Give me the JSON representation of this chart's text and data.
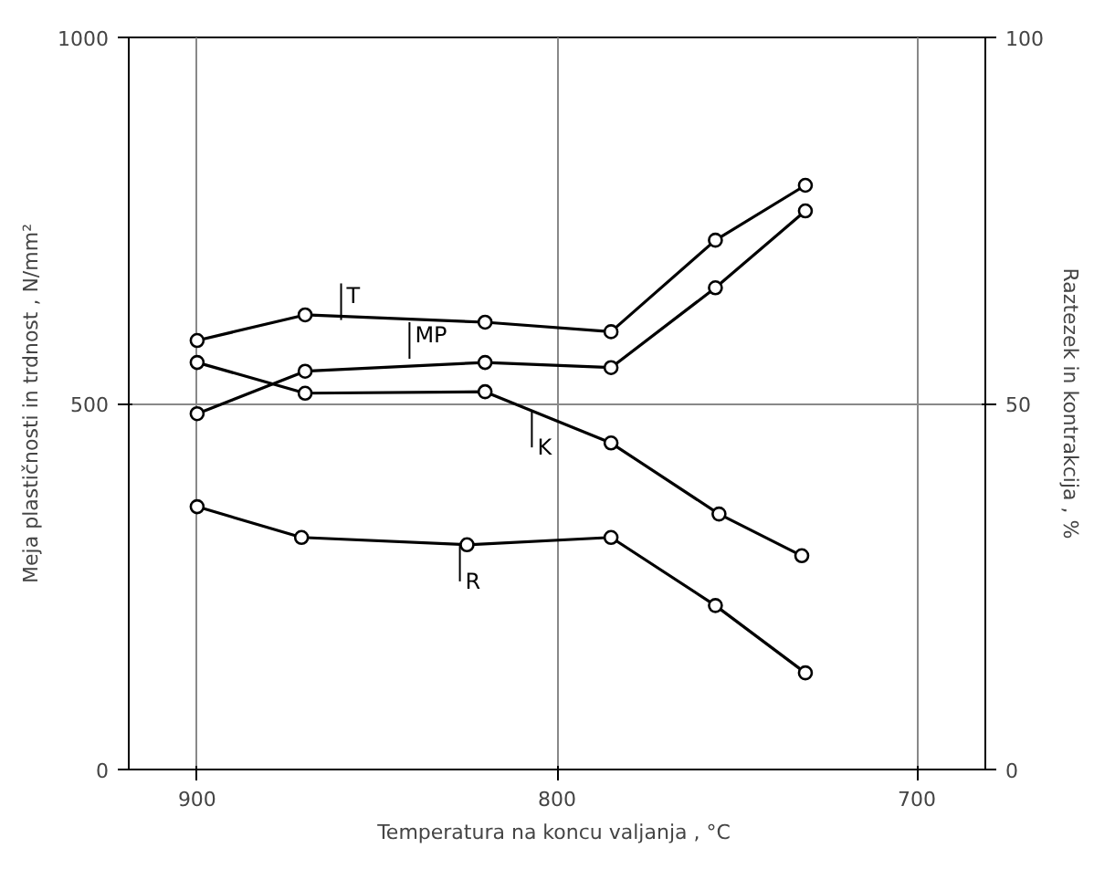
{
  "chart_data": {
    "type": "line",
    "xlabel": "Temperatura  na koncu valjanja , °C",
    "ylabel": "Meja plastičnosti in trdnost , N/mm²",
    "y2label": "Raztezek in kontrakcija , %",
    "xlim": [
      919,
      681
    ],
    "xticks": [
      900,
      800,
      700
    ],
    "ylim": [
      0,
      1000
    ],
    "yticks": [
      0,
      500,
      1000
    ],
    "y2lim": [
      0,
      100
    ],
    "y2ticks": [
      0,
      50,
      100
    ],
    "grid": true,
    "marker": "circle",
    "line_style": "solid",
    "series": [
      {
        "color": "#000000",
        "x": [
          900,
          870,
          820,
          785,
          756,
          731
        ],
        "values": [
          586,
          621,
          611,
          598,
          723,
          798
        ]
      },
      {
        "color": "#000000",
        "x": [
          900,
          870,
          820,
          785,
          756,
          731
        ],
        "values": [
          486,
          544,
          556,
          549,
          658,
          763
        ]
      },
      {
        "color": "#000000",
        "axis": "y2",
        "x": [
          900,
          870,
          820,
          785,
          755,
          732
        ],
        "values": [
          55.6,
          51.4,
          51.6,
          44.6,
          34.9,
          29.2
        ]
      },
      {
        "color": "#000000",
        "axis": "y2",
        "x": [
          900,
          871,
          825,
          785,
          756,
          731
        ],
        "values": [
          35.9,
          31.7,
          30.7,
          31.7,
          22.4,
          13.2
        ]
      }
    ],
    "annotations": [
      {
        "text": "T",
        "x": 860,
        "y": 614
      },
      {
        "text": "MP",
        "x": 841,
        "y": 561
      },
      {
        "text": "K",
        "x": 807,
        "y": 490
      },
      {
        "text": "R",
        "x": 827,
        "y": 307
      }
    ]
  }
}
